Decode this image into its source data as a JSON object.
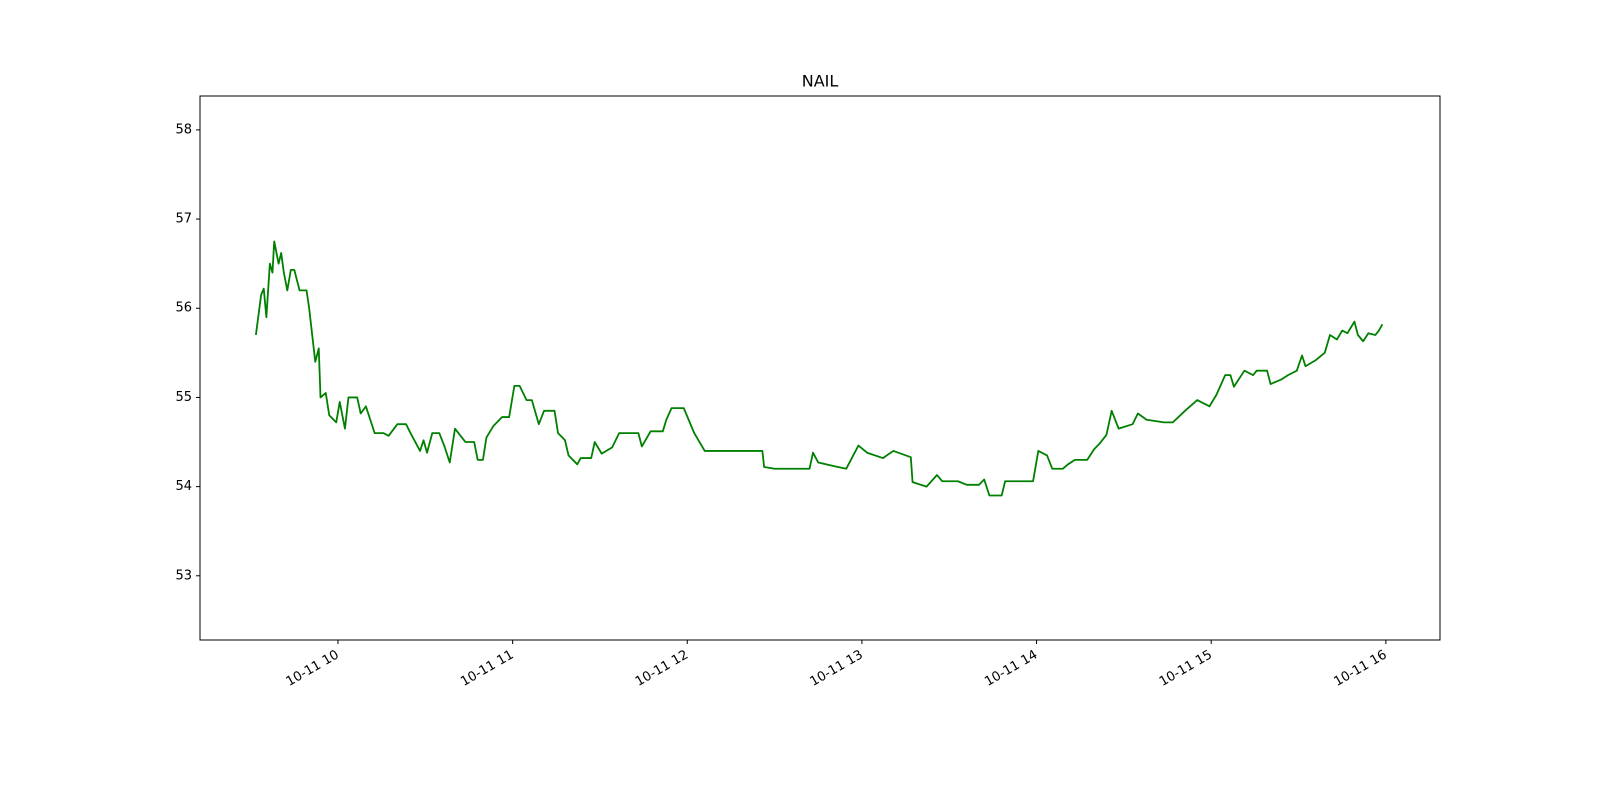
{
  "chart_data": {
    "type": "line",
    "title": "NAIL",
    "x": [
      9.53,
      9.56,
      9.575,
      9.59,
      9.61,
      9.625,
      9.635,
      9.66,
      9.675,
      9.69,
      9.71,
      9.73,
      9.75,
      9.78,
      9.82,
      9.835,
      9.87,
      9.89,
      9.9,
      9.93,
      9.95,
      9.99,
      10.01,
      10.04,
      10.06,
      10.11,
      10.13,
      10.16,
      10.21,
      10.26,
      10.29,
      10.34,
      10.39,
      10.41,
      10.47,
      10.49,
      10.51,
      10.54,
      10.58,
      10.61,
      10.64,
      10.67,
      10.73,
      10.78,
      10.8,
      10.83,
      10.85,
      10.89,
      10.94,
      10.98,
      11.01,
      11.04,
      11.08,
      11.11,
      11.15,
      11.18,
      11.24,
      11.26,
      11.3,
      11.32,
      11.37,
      11.39,
      11.45,
      11.47,
      11.51,
      11.57,
      11.61,
      11.72,
      11.74,
      11.79,
      11.86,
      11.88,
      11.91,
      11.98,
      12.04,
      12.1,
      12.43,
      12.44,
      12.5,
      12.7,
      12.72,
      12.75,
      12.84,
      12.91,
      12.98,
      13.03,
      13.12,
      13.18,
      13.28,
      13.29,
      13.37,
      13.43,
      13.46,
      13.55,
      13.6,
      13.67,
      13.7,
      13.73,
      13.8,
      13.82,
      13.98,
      14.01,
      14.06,
      14.09,
      14.15,
      14.18,
      14.22,
      14.29,
      14.33,
      14.36,
      14.4,
      14.43,
      14.47,
      14.55,
      14.58,
      14.63,
      14.73,
      14.78,
      14.85,
      14.92,
      14.99,
      15.03,
      15.08,
      15.11,
      15.13,
      15.19,
      15.24,
      15.26,
      15.32,
      15.34,
      15.4,
      15.44,
      15.49,
      15.52,
      15.54,
      15.6,
      15.65,
      15.68,
      15.72,
      15.75,
      15.78,
      15.82,
      15.84,
      15.87,
      15.9,
      15.94,
      15.96,
      15.98
    ],
    "series": [
      {
        "color": "#008000",
        "values": [
          55.7,
          56.15,
          56.22,
          55.9,
          56.5,
          56.4,
          56.75,
          56.5,
          56.62,
          56.4,
          56.2,
          56.43,
          56.43,
          56.2,
          56.2,
          56.0,
          55.4,
          55.55,
          55.0,
          55.05,
          54.8,
          54.72,
          54.95,
          54.65,
          55.0,
          55.0,
          54.82,
          54.9,
          54.6,
          54.6,
          54.57,
          54.7,
          54.7,
          54.62,
          54.4,
          54.52,
          54.38,
          54.6,
          54.6,
          54.45,
          54.27,
          54.65,
          54.5,
          54.5,
          54.3,
          54.3,
          54.55,
          54.68,
          54.78,
          54.78,
          55.13,
          55.13,
          54.97,
          54.97,
          54.7,
          54.85,
          54.85,
          54.6,
          54.52,
          54.35,
          54.25,
          54.32,
          54.32,
          54.5,
          54.37,
          54.44,
          54.6,
          54.6,
          54.45,
          54.62,
          54.62,
          54.75,
          54.88,
          54.88,
          54.6,
          54.4,
          54.4,
          54.22,
          54.2,
          54.2,
          54.38,
          54.27,
          54.23,
          54.2,
          54.46,
          54.38,
          54.32,
          54.4,
          54.33,
          54.05,
          54.0,
          54.13,
          54.06,
          54.06,
          54.02,
          54.02,
          54.08,
          53.9,
          53.9,
          54.06,
          54.06,
          54.4,
          54.35,
          54.2,
          54.2,
          54.25,
          54.3,
          54.3,
          54.42,
          54.48,
          54.58,
          54.85,
          54.65,
          54.7,
          54.82,
          54.75,
          54.72,
          54.72,
          54.85,
          54.97,
          54.9,
          55.03,
          55.25,
          55.25,
          55.12,
          55.3,
          55.25,
          55.3,
          55.3,
          55.15,
          55.2,
          55.25,
          55.3,
          55.47,
          55.35,
          55.42,
          55.5,
          55.7,
          55.65,
          55.75,
          55.72,
          55.85,
          55.7,
          55.63,
          55.72,
          55.7,
          55.75,
          55.82
        ]
      }
    ],
    "xlim": [
      9.21,
      16.31
    ],
    "xticks": [
      {
        "value": 10,
        "label": "10-11 10"
      },
      {
        "value": 11,
        "label": "10-11 11"
      },
      {
        "value": 12,
        "label": "10-11 12"
      },
      {
        "value": 13,
        "label": "10-11 13"
      },
      {
        "value": 14,
        "label": "10-11 14"
      },
      {
        "value": 15,
        "label": "10-11 15"
      },
      {
        "value": 16,
        "label": "10-11 16"
      }
    ],
    "ylim": [
      52.28,
      58.38
    ],
    "yticks": [
      53,
      54,
      55,
      56,
      57,
      58
    ]
  }
}
